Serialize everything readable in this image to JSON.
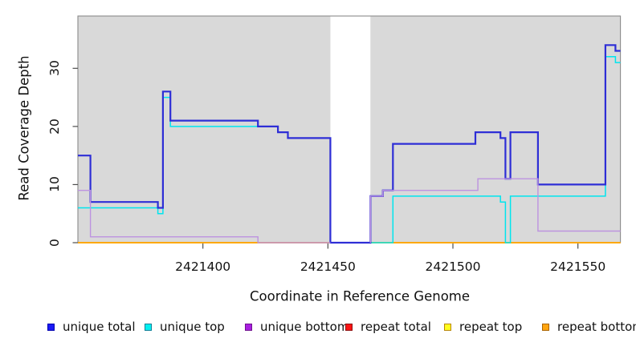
{
  "chart_data": {
    "type": "line",
    "subtype": "step",
    "title": "",
    "xlabel": "Coordinate in Reference Genome",
    "ylabel": "Read Coverage Depth",
    "x_range": [
      2421350,
      2421567
    ],
    "y_range": [
      0,
      39
    ],
    "x_ticks": [
      2421400,
      2421450,
      2421500,
      2421550
    ],
    "x_tick_labels": [
      "2421400",
      "2421450",
      "2421500",
      "2421550"
    ],
    "y_ticks": [
      0,
      10,
      20,
      30
    ],
    "y_tick_labels": [
      "0",
      "10",
      "20",
      "30"
    ],
    "grid": "off",
    "plot_background": "#d9d9d9",
    "plot_border_color": "#8a8a8a",
    "tick_color": "#4d4d4d",
    "gap_region": {
      "from": 2421451,
      "to": 2421467,
      "fill": "#ffffff"
    },
    "draw_order": [
      "repeat total",
      "repeat top",
      "repeat bottom",
      "unique top",
      "unique total",
      "unique bottom"
    ],
    "legend_position": "bottom",
    "series": [
      {
        "name": "unique total",
        "color": "#2e2ed6",
        "width": 2.2,
        "legend_fill": "#1a1af5",
        "legend_border": "#0000b0",
        "segments": [
          [
            [
              2421350,
              15
            ],
            [
              2421355,
              7
            ],
            [
              2421382,
              6
            ],
            [
              2421384,
              26
            ],
            [
              2421387,
              21
            ],
            [
              2421422,
              20
            ],
            [
              2421430,
              19
            ],
            [
              2421434,
              18
            ],
            [
              2421451,
              0
            ],
            [
              2421467,
              8
            ],
            [
              2421472,
              9
            ],
            [
              2421476,
              17
            ],
            [
              2421509,
              19
            ],
            [
              2421519,
              18
            ],
            [
              2421521,
              11
            ],
            [
              2421523,
              19
            ],
            [
              2421534,
              10
            ],
            [
              2421561,
              34
            ],
            [
              2421565,
              33
            ],
            [
              2421567,
              33
            ]
          ]
        ]
      },
      {
        "name": "unique top",
        "color": "#00e5ee",
        "width": 1.5,
        "legend_fill": "#00f0f0",
        "legend_border": "#0f7f98",
        "segments": [
          [
            [
              2421350,
              6
            ],
            [
              2421382,
              5
            ],
            [
              2421384,
              25
            ],
            [
              2421387,
              20
            ],
            [
              2421430,
              19
            ],
            [
              2421434,
              18
            ],
            [
              2421451,
              18
            ]
          ],
          [
            [
              2421467,
              0
            ],
            [
              2421476,
              8
            ],
            [
              2421519,
              7
            ],
            [
              2421521,
              0
            ],
            [
              2421523,
              8
            ],
            [
              2421561,
              32
            ],
            [
              2421565,
              31
            ],
            [
              2421567,
              31
            ]
          ]
        ]
      },
      {
        "name": "unique bottom",
        "color": "#bd93e0",
        "width": 1.4,
        "legend_fill": "#a81fe0",
        "legend_border": "#70128f",
        "segments": [
          [
            [
              2421350,
              9
            ],
            [
              2421355,
              1
            ],
            [
              2421422,
              0
            ],
            [
              2421451,
              0
            ]
          ],
          [
            [
              2421467,
              0
            ],
            [
              2421467,
              8
            ],
            [
              2421472,
              9
            ],
            [
              2421510,
              11
            ],
            [
              2421534,
              2
            ],
            [
              2421567,
              2
            ]
          ]
        ]
      },
      {
        "name": "repeat total",
        "color": "#dd2222",
        "width": 1.4,
        "legend_fill": "#fa1414",
        "legend_border": "#8f0f0f",
        "segments": [
          [
            [
              2421350,
              0
            ],
            [
              2421451,
              0
            ]
          ],
          [
            [
              2421467,
              0
            ],
            [
              2421567,
              0
            ]
          ]
        ]
      },
      {
        "name": "repeat top",
        "color": "#ffff00",
        "width": 1.4,
        "legend_fill": "#ffff1e",
        "legend_border": "#b8860b",
        "segments": [
          [
            [
              2421350,
              0
            ],
            [
              2421451,
              0
            ]
          ],
          [
            [
              2421467,
              0
            ],
            [
              2421567,
              0
            ]
          ]
        ]
      },
      {
        "name": "repeat bottom",
        "color": "#ffa500",
        "width": 1.8,
        "legend_fill": "#ffa510",
        "legend_border": "#aa6400",
        "segments": [
          [
            [
              2421350,
              0
            ],
            [
              2421451,
              0
            ]
          ],
          [
            [
              2421467,
              0
            ],
            [
              2421567,
              0
            ]
          ]
        ]
      }
    ]
  }
}
